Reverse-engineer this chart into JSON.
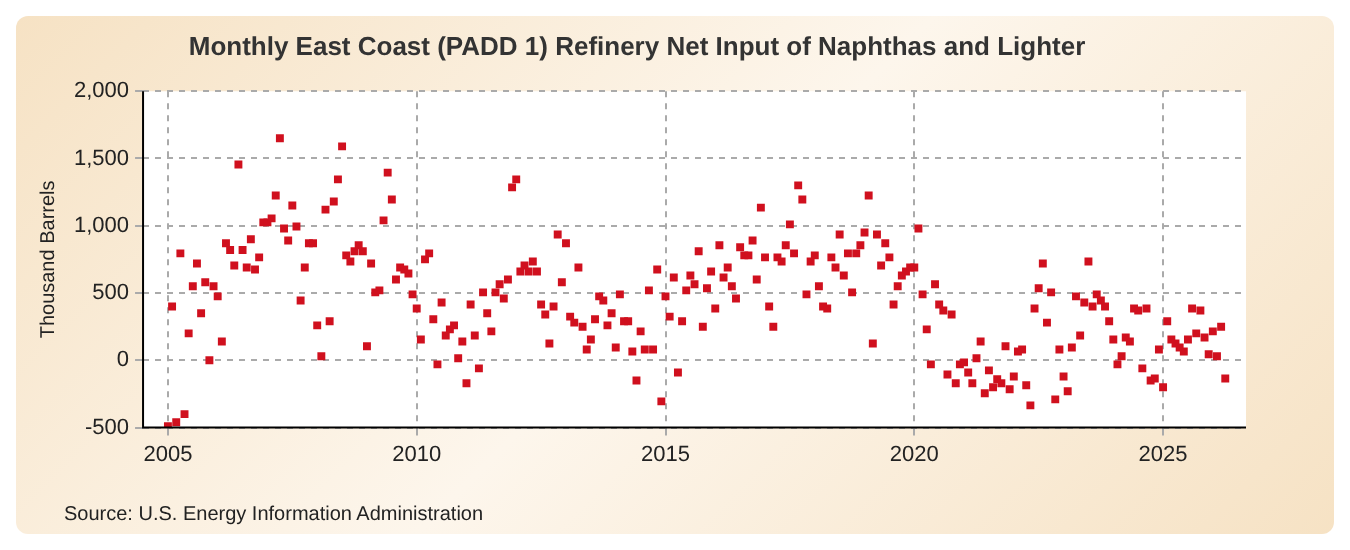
{
  "chart_data": {
    "type": "scatter",
    "title": "Monthly East Coast (PADD 1) Refinery Net Input of Naphthas and Lighter",
    "ylabel": "Thousand Barrels",
    "annotations": [
      "Source: U.S. Energy Information Administration"
    ],
    "x": [
      "2005-01",
      "2005-02",
      "2005-03",
      "2005-04",
      "2005-05",
      "2005-06",
      "2005-07",
      "2005-08",
      "2005-09",
      "2005-10",
      "2005-11",
      "2005-12",
      "2006-01",
      "2006-02",
      "2006-03",
      "2006-04",
      "2006-05",
      "2006-06",
      "2006-07",
      "2006-08",
      "2006-09",
      "2006-10",
      "2006-11",
      "2006-12",
      "2007-01",
      "2007-02",
      "2007-03",
      "2007-04",
      "2007-05",
      "2007-06",
      "2007-07",
      "2007-08",
      "2007-09",
      "2007-10",
      "2007-11",
      "2007-12",
      "2008-01",
      "2008-02",
      "2008-03",
      "2008-04",
      "2008-05",
      "2008-06",
      "2008-07",
      "2008-08",
      "2008-09",
      "2008-10",
      "2008-11",
      "2008-12",
      "2009-01",
      "2009-02",
      "2009-03",
      "2009-04",
      "2009-05",
      "2009-06",
      "2009-07",
      "2009-08",
      "2009-09",
      "2009-10",
      "2009-11",
      "2009-12",
      "2010-01",
      "2010-02",
      "2010-03",
      "2010-04",
      "2010-05",
      "2010-06",
      "2010-07",
      "2010-08",
      "2010-09",
      "2010-10",
      "2010-11",
      "2010-12",
      "2011-01",
      "2011-02",
      "2011-03",
      "2011-04",
      "2011-05",
      "2011-06",
      "2011-07",
      "2011-08",
      "2011-09",
      "2011-10",
      "2011-11",
      "2011-12",
      "2012-01",
      "2012-02",
      "2012-03",
      "2012-04",
      "2012-05",
      "2012-06",
      "2012-07",
      "2012-08",
      "2012-09",
      "2012-10",
      "2012-11",
      "2012-12",
      "2013-01",
      "2013-02",
      "2013-03",
      "2013-04",
      "2013-05",
      "2013-06",
      "2013-07",
      "2013-08",
      "2013-09",
      "2013-10",
      "2013-11",
      "2013-12",
      "2014-01",
      "2014-02",
      "2014-03",
      "2014-04",
      "2014-05",
      "2014-06",
      "2014-07",
      "2014-08",
      "2014-09",
      "2014-10",
      "2014-11",
      "2014-12",
      "2015-01",
      "2015-02",
      "2015-03",
      "2015-04",
      "2015-05",
      "2015-06",
      "2015-07",
      "2015-08",
      "2015-09",
      "2015-10",
      "2015-11",
      "2015-12",
      "2016-01",
      "2016-02",
      "2016-03",
      "2016-04",
      "2016-05",
      "2016-06",
      "2016-07",
      "2016-08",
      "2016-09",
      "2016-10",
      "2016-11",
      "2016-12",
      "2017-01",
      "2017-02",
      "2017-03",
      "2017-04",
      "2017-05",
      "2017-06",
      "2017-07",
      "2017-08",
      "2017-09",
      "2017-10",
      "2017-11",
      "2017-12",
      "2018-01",
      "2018-02",
      "2018-03",
      "2018-04",
      "2018-05",
      "2018-06",
      "2018-07",
      "2018-08",
      "2018-09",
      "2018-10",
      "2018-11",
      "2018-12",
      "2019-01",
      "2019-02",
      "2019-03",
      "2019-04",
      "2019-05",
      "2019-06",
      "2019-07",
      "2019-08",
      "2019-09",
      "2019-10",
      "2019-11",
      "2019-12",
      "2020-01",
      "2020-02",
      "2020-03",
      "2020-04",
      "2020-05",
      "2020-06",
      "2020-07",
      "2020-08",
      "2020-09",
      "2020-10",
      "2020-11",
      "2020-12",
      "2021-01",
      "2021-02",
      "2021-03",
      "2021-04",
      "2021-05",
      "2021-06",
      "2021-07",
      "2021-08",
      "2021-09",
      "2021-10",
      "2021-11",
      "2021-12",
      "2022-01",
      "2022-02",
      "2022-03",
      "2022-04",
      "2022-05",
      "2022-06",
      "2022-07",
      "2022-08",
      "2022-09",
      "2022-10",
      "2022-11",
      "2022-12",
      "2023-01",
      "2023-02",
      "2023-03",
      "2023-04",
      "2023-05",
      "2023-06",
      "2023-07",
      "2023-08",
      "2023-09",
      "2023-10",
      "2023-11",
      "2023-12",
      "2024-01",
      "2024-02",
      "2024-03",
      "2024-04",
      "2024-05",
      "2024-06",
      "2024-07",
      "2024-08",
      "2024-09",
      "2024-10",
      "2024-11",
      "2024-12",
      "2025-01",
      "2025-02",
      "2025-03",
      "2025-04",
      "2025-05",
      "2025-06",
      "2025-07",
      "2025-08",
      "2025-09",
      "2025-10",
      "2025-11",
      "2025-12",
      "2026-01",
      "2026-02",
      "2026-03",
      "2026-04"
    ],
    "series": [
      {
        "color": "#d0101e",
        "values": [
          -490,
          400,
          -460,
          795,
          -400,
          200,
          550,
          720,
          350,
          580,
          0,
          550,
          475,
          140,
          870,
          820,
          705,
          1455,
          820,
          690,
          900,
          675,
          765,
          1025,
          1025,
          1055,
          1225,
          1650,
          980,
          890,
          1150,
          995,
          445,
          690,
          870,
          870,
          260,
          30,
          1120,
          290,
          1180,
          1345,
          1590,
          780,
          735,
          810,
          855,
          810,
          105,
          720,
          505,
          520,
          1040,
          1395,
          1195,
          600,
          690,
          675,
          645,
          490,
          385,
          155,
          750,
          795,
          305,
          -30,
          430,
          185,
          230,
          260,
          15,
          140,
          -170,
          415,
          185,
          -60,
          505,
          350,
          215,
          505,
          565,
          460,
          600,
          1285,
          1345,
          660,
          705,
          660,
          735,
          660,
          415,
          340,
          125,
          400,
          935,
          580,
          870,
          325,
          280,
          690,
          250,
          80,
          155,
          305,
          475,
          445,
          260,
          350,
          95,
          490,
          290,
          290,
          65,
          -150,
          215,
          80,
          520,
          80,
          675,
          -305,
          475,
          325,
          615,
          -90,
          290,
          520,
          630,
          565,
          810,
          250,
          535,
          660,
          385,
          855,
          615,
          690,
          550,
          460,
          840,
          780,
          780,
          890,
          600,
          1135,
          765,
          400,
          250,
          765,
          735,
          855,
          1010,
          795,
          1300,
          1195,
          490,
          735,
          780,
          550,
          400,
          385,
          765,
          690,
          935,
          630,
          795,
          505,
          795,
          855,
          950,
          1225,
          125,
          935,
          705,
          870,
          765,
          415,
          550,
          630,
          660,
          690,
          690,
          980,
          490,
          230,
          -30,
          565,
          415,
          370,
          -105,
          340,
          -170,
          -30,
          -15,
          -90,
          -170,
          15,
          140,
          -245,
          -75,
          -200,
          -140,
          -170,
          105,
          -215,
          -120,
          65,
          80,
          -185,
          -335,
          385,
          535,
          720,
          280,
          505,
          -290,
          80,
          -120,
          -230,
          95,
          475,
          185,
          430,
          735,
          400,
          490,
          445,
          400,
          290,
          155,
          -30,
          30,
          170,
          140,
          385,
          370,
          -60,
          385,
          -150,
          -135,
          80,
          -200,
          290,
          155,
          125,
          95,
          65,
          155,
          385,
          200,
          370,
          170,
          45,
          215,
          30,
          250,
          -135
        ]
      }
    ],
    "xlim": [
      "2004-07",
      "2026-09"
    ],
    "xticks": [
      "2005",
      "2010",
      "2015",
      "2020",
      "2025"
    ],
    "ylim": [
      -500,
      2000
    ],
    "yticks": [
      {
        "value": -500,
        "label": "-500"
      },
      0,
      500,
      {
        "value": 1000,
        "label": "1,000"
      },
      {
        "value": 1500,
        "label": "1,500"
      },
      {
        "value": 2000,
        "label": "2,000"
      }
    ],
    "grid": true,
    "legend": false,
    "marker": "square"
  }
}
